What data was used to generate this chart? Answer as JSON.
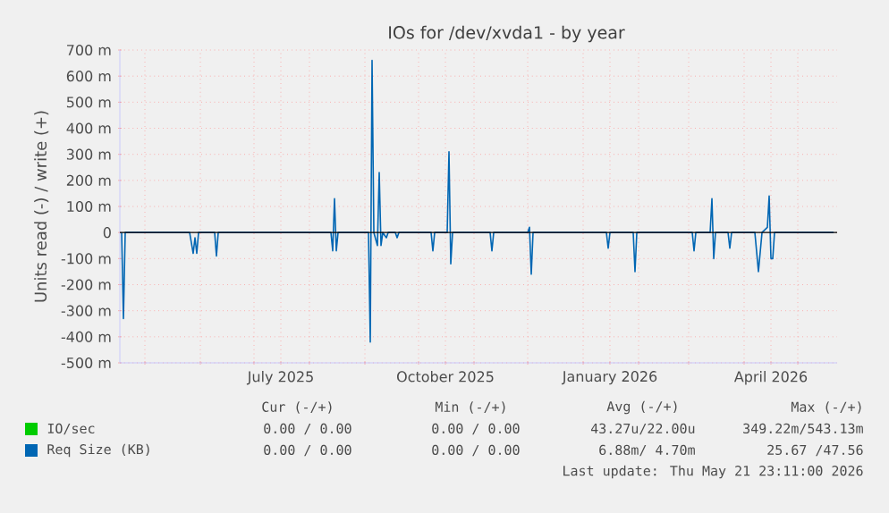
{
  "chart_data": {
    "type": "line",
    "title": "IOs for /dev/xvda1 - by year",
    "ylabel": "Units read (-) / write (+)",
    "x": [
      "2025-04-18",
      "2025-04-19",
      "2025-04-20",
      "2025-05-26",
      "2025-05-28",
      "2025-05-29",
      "2025-05-30",
      "2025-05-31",
      "2025-06-09",
      "2025-06-10",
      "2025-06-11",
      "2025-08-13",
      "2025-08-14",
      "2025-08-15",
      "2025-08-16",
      "2025-08-17",
      "2025-09-03",
      "2025-09-04",
      "2025-09-05",
      "2025-09-06",
      "2025-09-08",
      "2025-09-09",
      "2025-09-10",
      "2025-09-11",
      "2025-09-13",
      "2025-09-14",
      "2025-09-18",
      "2025-09-19",
      "2025-09-20",
      "2025-10-08",
      "2025-10-09",
      "2025-10-10",
      "2025-10-17",
      "2025-10-18",
      "2025-10-19",
      "2025-10-20",
      "2025-11-10",
      "2025-11-11",
      "2025-11-12",
      "2025-12-01",
      "2025-12-02",
      "2025-12-03",
      "2025-12-04",
      "2026-01-14",
      "2026-01-15",
      "2026-01-16",
      "2026-01-29",
      "2026-01-30",
      "2026-01-31",
      "2026-03-03",
      "2026-03-04",
      "2026-03-05",
      "2026-03-13",
      "2026-03-14",
      "2026-03-15",
      "2026-03-16",
      "2026-03-23",
      "2026-03-24",
      "2026-03-25",
      "2026-04-07",
      "2026-04-09",
      "2026-04-11",
      "2026-04-14",
      "2026-04-15",
      "2026-04-16",
      "2026-04-17",
      "2026-04-18",
      "2026-05-21"
    ],
    "series": [
      {
        "name": "IO/sec",
        "color": "#00cc00",
        "values": [
          null,
          null,
          null,
          null,
          null,
          null,
          null,
          null,
          null,
          null,
          null,
          null,
          null,
          null,
          null,
          null,
          null,
          null,
          null,
          null,
          null,
          null,
          null,
          null,
          null,
          null,
          null,
          null,
          null,
          null,
          null,
          null,
          null,
          null,
          null,
          null,
          null,
          null,
          null,
          null,
          null,
          null,
          null,
          null,
          null,
          null,
          null,
          null,
          null,
          null,
          null,
          null,
          null,
          null,
          null,
          null,
          null,
          null,
          null,
          null,
          null,
          null,
          null,
          null,
          null,
          null,
          null,
          null
        ]
      },
      {
        "name": "Req Size (KB)",
        "color": "#0066b3",
        "values": [
          0,
          -330,
          0,
          0,
          -80,
          -20,
          -80,
          0,
          0,
          -90,
          0,
          0,
          -70,
          130,
          -70,
          0,
          0,
          -420,
          660,
          0,
          -50,
          230,
          -50,
          0,
          -20,
          0,
          0,
          -20,
          0,
          0,
          -70,
          0,
          0,
          310,
          -120,
          0,
          0,
          -70,
          0,
          0,
          20,
          -160,
          0,
          0,
          -60,
          0,
          0,
          -150,
          0,
          0,
          -70,
          0,
          0,
          130,
          -100,
          0,
          0,
          -60,
          0,
          0,
          -150,
          0,
          20,
          140,
          -100,
          -100,
          0,
          0
        ]
      }
    ],
    "xlim": [
      "2025-04-17",
      "2026-05-23"
    ],
    "xticks": [
      {
        "value": "2025-05-01",
        "label": null
      },
      {
        "value": "2025-06-01",
        "label": null
      },
      {
        "value": "2025-07-01",
        "label": null
      },
      {
        "value": "2025-07-16",
        "label": "July 2025"
      },
      {
        "value": "2025-08-01",
        "label": null
      },
      {
        "value": "2025-09-01",
        "label": null
      },
      {
        "value": "2025-10-01",
        "label": null
      },
      {
        "value": "2025-10-16",
        "label": "October 2025"
      },
      {
        "value": "2025-11-01",
        "label": null
      },
      {
        "value": "2025-12-01",
        "label": null
      },
      {
        "value": "2026-01-01",
        "label": null
      },
      {
        "value": "2026-01-16",
        "label": "January 2026"
      },
      {
        "value": "2026-02-01",
        "label": null
      },
      {
        "value": "2026-03-01",
        "label": null
      },
      {
        "value": "2026-04-01",
        "label": null
      },
      {
        "value": "2026-04-16",
        "label": "April 2026"
      },
      {
        "value": "2026-05-01",
        "label": null
      }
    ],
    "ylim": [
      -500,
      700
    ],
    "yticks": [
      {
        "value": -500,
        "label": "-500 m"
      },
      {
        "value": -400,
        "label": "-400 m"
      },
      {
        "value": -300,
        "label": "-300 m"
      },
      {
        "value": -200,
        "label": "-200 m"
      },
      {
        "value": -100,
        "label": "-100 m"
      },
      0,
      {
        "value": 100,
        "label": "100 m"
      },
      {
        "value": 200,
        "label": "200 m"
      },
      {
        "value": 300,
        "label": "300 m"
      },
      {
        "value": 400,
        "label": "400 m"
      },
      {
        "value": 500,
        "label": "500 m"
      },
      {
        "value": 600,
        "label": "600 m"
      },
      {
        "value": 700,
        "label": "700 m"
      }
    ],
    "ref_lines": [
      {
        "axis": "y",
        "value": 0,
        "color": "#000000"
      }
    ],
    "grid": true,
    "legend": "bottom",
    "annotations": [
      "Cur (-/+)",
      "Min (-/+)",
      "Avg (-/+)",
      "Max (-/+)",
      "0.00 / 0.00",
      "0.00 / 0.00",
      "43.27u/22.00u",
      "349.22m/543.13m",
      "0.00 / 0.00",
      "0.00 / 0.00",
      "6.88m/ 4.70m",
      "25.67 /47.56",
      "Last update: Thu May 21 23:11:00 2026"
    ]
  }
}
